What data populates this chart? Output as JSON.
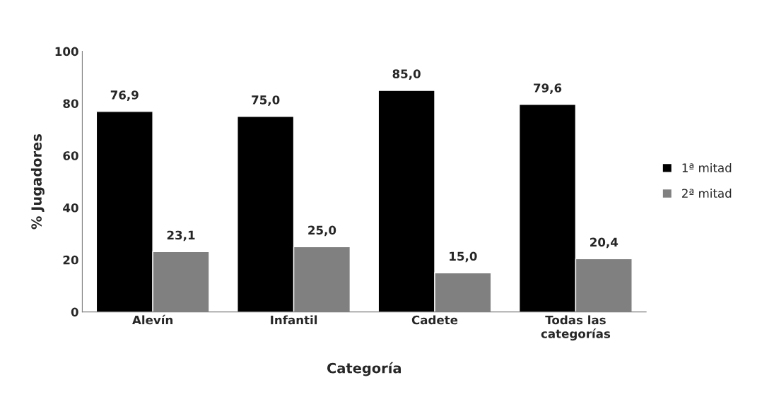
{
  "chart_data": {
    "type": "bar",
    "xlabel": "Categoría",
    "ylabel": "% Jugadores",
    "categories": [
      "Alevín",
      "Infantil",
      "Cadete",
      "Todas las\ncategorías"
    ],
    "series": [
      {
        "name": "1ª mitad",
        "color": "#000000",
        "values": [
          76.9,
          75.0,
          85.0,
          79.6
        ],
        "value_labels": [
          "76,9",
          "75,0",
          "85,0",
          "79,6"
        ]
      },
      {
        "name": "2ª mitad",
        "color": "#808080",
        "values": [
          23.1,
          25.0,
          15.0,
          20.4
        ],
        "value_labels": [
          "23,1",
          "25,0",
          "15,0",
          "20,4"
        ]
      }
    ],
    "ylim": [
      0,
      100
    ],
    "yticks": [
      0,
      20,
      40,
      60,
      80,
      100
    ],
    "grid": false,
    "legend": "right"
  }
}
